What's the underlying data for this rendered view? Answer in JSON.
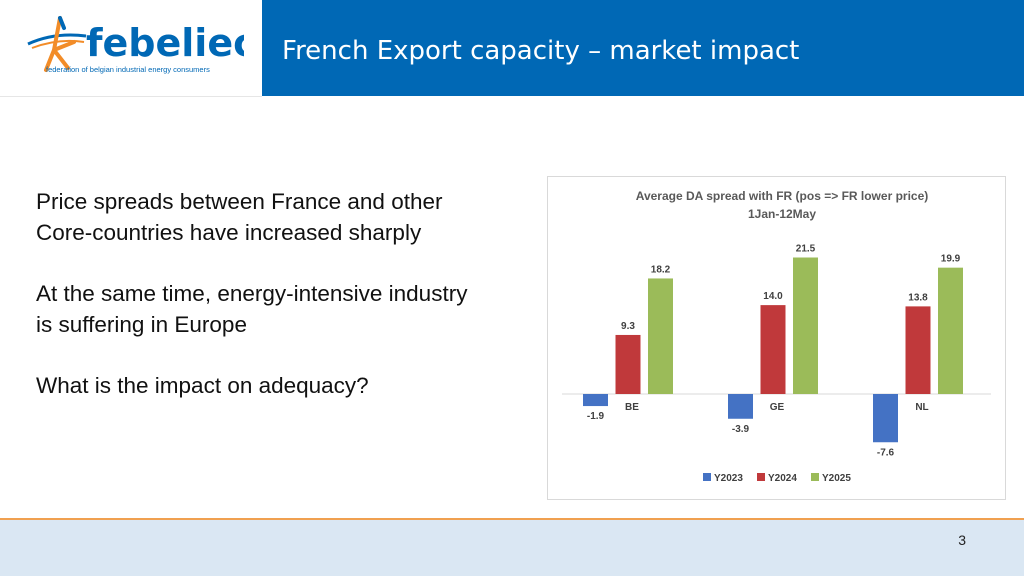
{
  "header": {
    "logo_name": "febeliec",
    "logo_tagline": "federation of belgian industrial energy consumers",
    "title": "French Export capacity – market impact"
  },
  "body": {
    "paragraphs": [
      "Price spreads between France and other Core-countries have increased sharply",
      "At the same time, energy-intensive industry is suffering in Europe",
      "What is the impact on adequacy?"
    ]
  },
  "chart_data": {
    "type": "bar",
    "title": "Average DA spread with FR (pos => FR lower price)",
    "subtitle": "1Jan-12May",
    "categories": [
      "BE",
      "GE",
      "NL"
    ],
    "series": [
      {
        "name": "Y2023",
        "color": "#4472c4",
        "values": [
          -1.9,
          -3.9,
          -7.6
        ]
      },
      {
        "name": "Y2024",
        "color": "#c0393b",
        "values": [
          9.3,
          14.0,
          13.8
        ]
      },
      {
        "name": "Y2025",
        "color": "#9bbb59",
        "values": [
          18.2,
          21.5,
          19.9
        ]
      }
    ],
    "ylim": [
      -7.6,
      21.5
    ],
    "legend_position": "bottom",
    "grid": false
  },
  "footer": {
    "page_number": "3"
  }
}
